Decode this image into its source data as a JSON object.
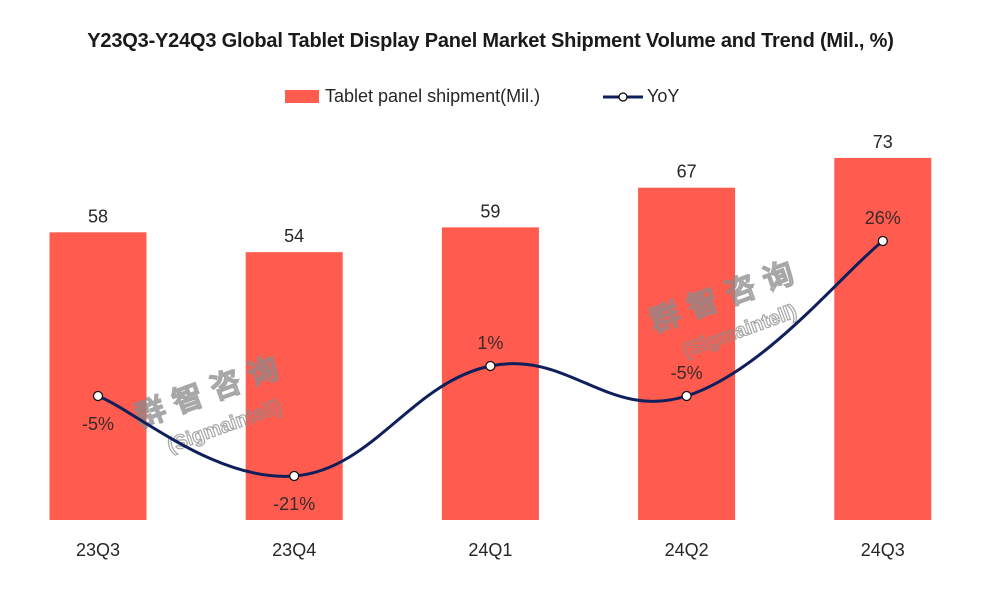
{
  "chart_data": {
    "type": "bar+line",
    "title": "Y23Q3-Y24Q3 Global Tablet Display Panel Market Shipment Volume and Trend (Mil., %)",
    "categories": [
      "23Q3",
      "23Q4",
      "24Q1",
      "24Q2",
      "24Q3"
    ],
    "series": [
      {
        "name": "Tablet panel shipment(Mil.)",
        "type": "bar",
        "values": [
          58,
          54,
          59,
          67,
          73
        ],
        "labels": [
          "58",
          "54",
          "59",
          "67",
          "73"
        ],
        "color": "#FF5B4F"
      },
      {
        "name": "YoY",
        "type": "line",
        "smooth": true,
        "values": [
          -5,
          -21,
          1,
          -5,
          26
        ],
        "labels": [
          "-5%",
          "-21%",
          "1%",
          "-5%",
          "26%"
        ],
        "color": "#0E1F5B",
        "marker": "circle-white"
      }
    ],
    "xlabel": "",
    "ylabel": "",
    "legend": "top-center",
    "grid": false,
    "watermark": [
      "群智咨询",
      "(Sigmaintell)"
    ]
  }
}
